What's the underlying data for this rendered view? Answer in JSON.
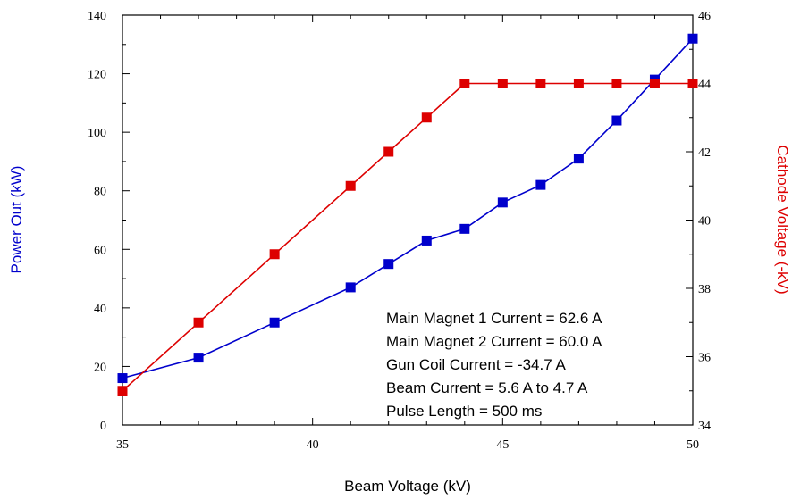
{
  "chart_data": {
    "type": "line",
    "title": "",
    "xlabel": "Beam Voltage (kV)",
    "ylabel": "Power Out (kW)",
    "y2label": "Cathode Voltage (-kV)",
    "xlim": [
      35,
      50
    ],
    "ylim": [
      0,
      140
    ],
    "y2lim": [
      34,
      46
    ],
    "x_ticks": [
      "35",
      "40",
      "45",
      "50"
    ],
    "y_ticks": [
      "0",
      "20",
      "40",
      "60",
      "80",
      "100",
      "120",
      "140"
    ],
    "y2_ticks": [
      "34",
      "36",
      "38",
      "40",
      "42",
      "44",
      "46"
    ],
    "grid": false,
    "series": [
      {
        "axis": "left",
        "color": "#0000cc",
        "marker": "square",
        "x": [
          35,
          37,
          39,
          41,
          42,
          43,
          44,
          45,
          46,
          47,
          48,
          49,
          50
        ],
        "values": [
          16,
          23,
          35,
          47,
          55,
          63,
          67,
          76,
          82,
          91,
          104,
          118,
          132
        ]
      },
      {
        "axis": "right",
        "color": "#dd0000",
        "marker": "square",
        "x": [
          35,
          37,
          39,
          41,
          42,
          43,
          44,
          45,
          46,
          47,
          48,
          49,
          50
        ],
        "values": [
          35,
          37,
          39,
          41,
          42,
          43,
          44,
          44,
          44,
          44,
          44,
          44,
          44
        ]
      }
    ],
    "annotations": [
      "Main Magnet 1 Current = 62.6 A",
      "Main Magnet 2 Current = 60.0 A",
      "Gun Coil Current = -34.7 A",
      "Beam Current = 5.6 A to 4.7 A",
      "Pulse Length = 500 ms"
    ]
  }
}
